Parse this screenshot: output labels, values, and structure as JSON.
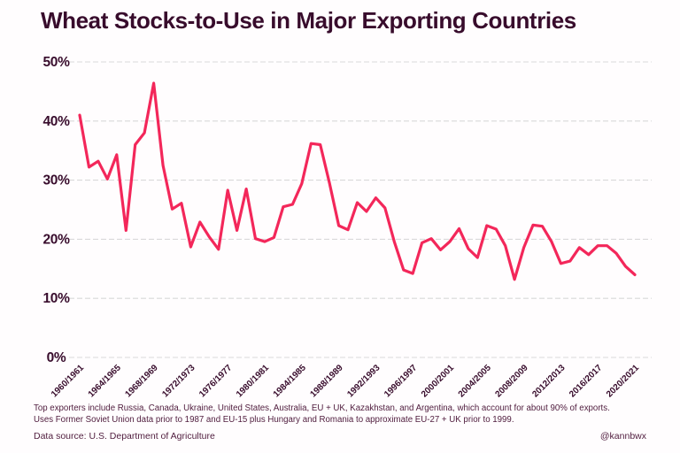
{
  "title": "Wheat Stocks-to-Use in Major Exporting Countries",
  "footnotes": [
    "Top exporters include Russia, Canada, Ukraine, United States, Australia, EU + UK, Kazakhstan, and Argentina,  which account for about 90% of exports.",
    "Uses Former Soviet Union data prior to 1987 and EU-15 plus Hungary and Romania to approximate EU-27 + UK prior to 1999."
  ],
  "footer": {
    "source": "Data source: U.S. Department of Agriculture",
    "handle": "@kannbwx"
  },
  "colors": {
    "ink": "#380C2C",
    "footnote_ink": "#4F1C3D",
    "line": "#F3275A",
    "grid": "#D9D9D9",
    "background": "#FFFDFE"
  },
  "chart_data": {
    "type": "line",
    "title": "Wheat Stocks-to-Use in Major Exporting Countries",
    "xlabel": "",
    "ylabel": "",
    "ylim": [
      0,
      50
    ],
    "y_ticks": [
      0,
      10,
      20,
      30,
      40,
      50
    ],
    "y_tick_suffix": "%",
    "grid": "horizontal-dashed",
    "legend": "none",
    "x_tick_labels": [
      "1960/1961",
      "1964/1965",
      "1968/1969",
      "1972/1973",
      "1976/1977",
      "1980/1981",
      "1984/1985",
      "1988/1989",
      "1992/1993",
      "1996/1997",
      "2000/2001",
      "2004/2005",
      "2008/2009",
      "2012/2013",
      "2016/2017",
      "2020/2021"
    ],
    "series": [
      {
        "name": "Wheat stocks-to-use in major exporting countries (%)",
        "start_year": 1960,
        "x_step_years": 1,
        "values": [
          41.0,
          32.2,
          33.2,
          30.2,
          34.3,
          21.5,
          36.0,
          38.0,
          46.4,
          32.5,
          25.1,
          26.1,
          18.7,
          22.9,
          20.4,
          18.3,
          28.3,
          21.5,
          28.5,
          20.1,
          19.6,
          20.3,
          25.5,
          25.9,
          29.4,
          36.2,
          36.0,
          29.5,
          22.3,
          21.6,
          26.2,
          24.7,
          27.0,
          25.3,
          19.6,
          14.8,
          14.2,
          19.4,
          20.1,
          18.2,
          19.6,
          21.8,
          18.4,
          16.9,
          22.3,
          21.7,
          18.9,
          13.2,
          18.6,
          22.4,
          22.2,
          19.6,
          15.9,
          16.3,
          18.6,
          17.4,
          18.9,
          18.9,
          17.6,
          15.4,
          14.0
        ]
      }
    ]
  }
}
